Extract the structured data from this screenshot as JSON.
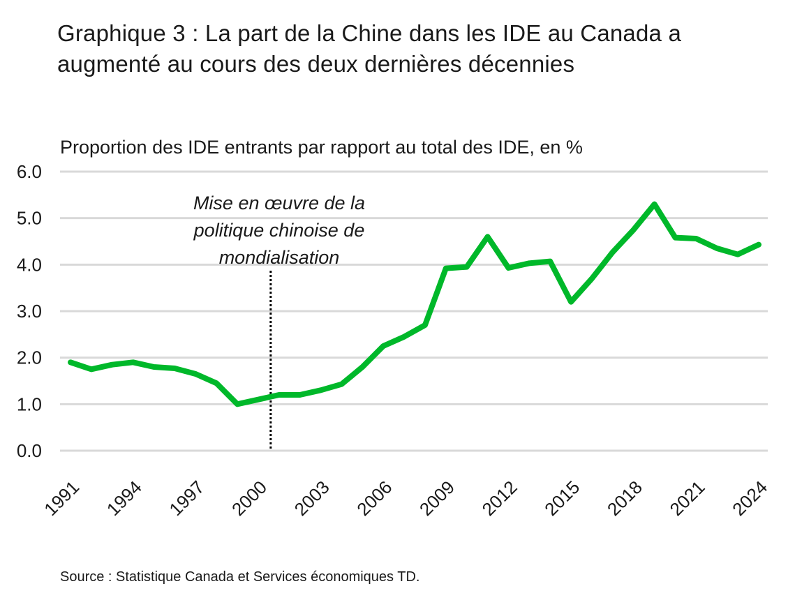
{
  "chart_data": {
    "type": "line",
    "title": "Graphique 3 : La part de la Chine dans les IDE au Canada a augmenté au cours des deux dernières décennies",
    "subtitle": "Proportion des IDE entrants par rapport au total des IDE, en %",
    "source": "Source : Statistique Canada et Services économiques TD.",
    "x": [
      1991,
      1992,
      1993,
      1994,
      1995,
      1996,
      1997,
      1998,
      1999,
      2000,
      2001,
      2002,
      2003,
      2004,
      2005,
      2006,
      2007,
      2008,
      2009,
      2010,
      2011,
      2012,
      2013,
      2014,
      2015,
      2016,
      2017,
      2018,
      2019,
      2020,
      2021,
      2022,
      2023,
      2024
    ],
    "series": [
      {
        "values": [
          1.9,
          1.75,
          1.85,
          1.9,
          1.8,
          1.77,
          1.65,
          1.45,
          1.0,
          1.1,
          1.2,
          1.2,
          1.3,
          1.43,
          1.8,
          2.25,
          2.45,
          2.7,
          3.92,
          3.95,
          4.6,
          3.93,
          4.03,
          4.07,
          3.2,
          3.7,
          4.27,
          4.75,
          5.3,
          4.58,
          4.56,
          4.35,
          4.22,
          4.43
        ],
        "color": "#00b82a"
      }
    ],
    "xticks": [
      "1991",
      "1994",
      "1997",
      "2000",
      "2003",
      "2006",
      "2009",
      "2012",
      "2015",
      "2018",
      "2021",
      "2024"
    ],
    "yticks": [
      "0.0",
      "1.0",
      "2.0",
      "3.0",
      "4.0",
      "5.0",
      "6.0"
    ],
    "ylim": [
      0,
      6
    ],
    "grid": true,
    "annotation": {
      "lines": [
        "Mise en œuvre de la",
        "politique chinoise de",
        "mondialisation"
      ],
      "year": 2000.6
    }
  }
}
